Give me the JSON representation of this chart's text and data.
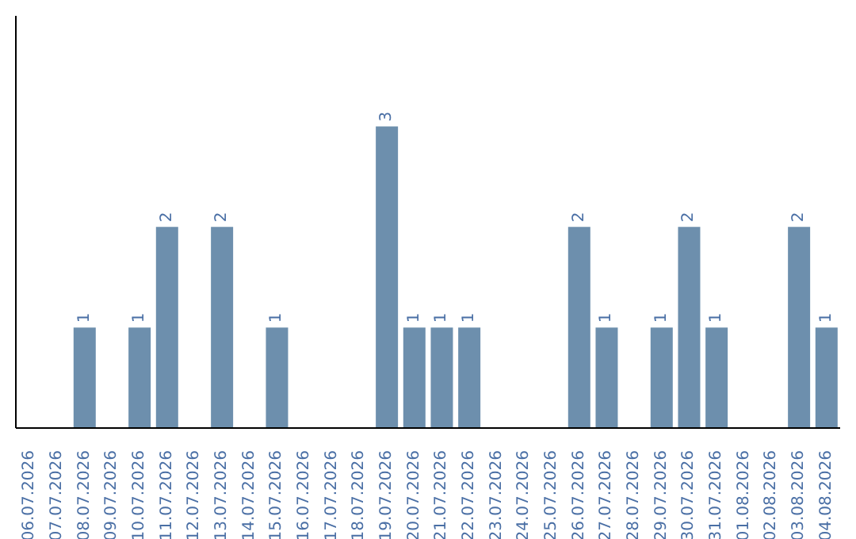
{
  "chart_data": {
    "type": "bar",
    "categories": [
      "06.07.2026",
      "07.07.2026",
      "08.07.2026",
      "09.07.2026",
      "10.07.2026",
      "11.07.2026",
      "12.07.2026",
      "13.07.2026",
      "14.07.2026",
      "15.07.2026",
      "16.07.2026",
      "17.07.2026",
      "18.07.2026",
      "19.07.2026",
      "20.07.2026",
      "21.07.2026",
      "22.07.2026",
      "23.07.2026",
      "24.07.2026",
      "25.07.2026",
      "26.07.2026",
      "27.07.2026",
      "28.07.2026",
      "29.07.2026",
      "30.07.2026",
      "31.07.2026",
      "01.08.2026",
      "02.08.2026",
      "03.08.2026",
      "04.08.2026"
    ],
    "values": [
      0,
      0,
      1,
      0,
      1,
      2,
      0,
      2,
      0,
      1,
      0,
      0,
      0,
      3,
      1,
      1,
      1,
      0,
      0,
      0,
      2,
      1,
      0,
      1,
      2,
      1,
      0,
      0,
      2,
      1
    ],
    "value_labels": [
      null,
      null,
      "1",
      null,
      "1",
      "2",
      null,
      "2",
      null,
      "1",
      null,
      null,
      null,
      "3",
      "1",
      "1",
      "1",
      null,
      null,
      null,
      "2",
      "1",
      null,
      "1",
      "2",
      "1",
      null,
      null,
      "2",
      "1"
    ],
    "color": "#6d8fad",
    "ylim": [
      0,
      4.1
    ]
  }
}
